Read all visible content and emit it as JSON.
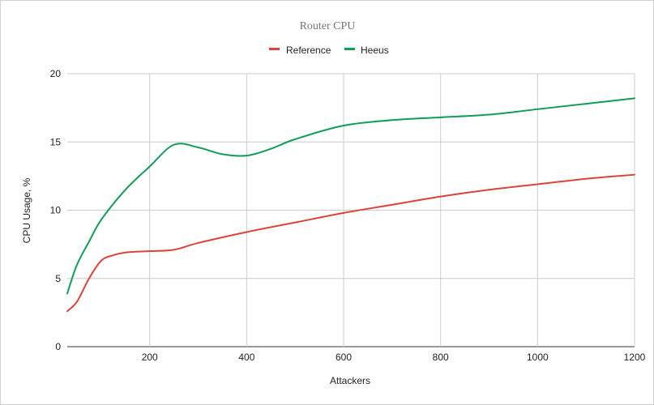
{
  "chart_data": {
    "type": "line",
    "title": "Router CPU",
    "xlabel": "Attackers",
    "ylabel": "CPU Usage, %",
    "xlim": [
      30,
      1200
    ],
    "ylim": [
      0,
      20
    ],
    "xticks": [
      200,
      400,
      600,
      800,
      1000,
      1200
    ],
    "yticks": [
      0,
      5,
      10,
      15,
      20
    ],
    "grid": true,
    "legend_position": "top",
    "series": [
      {
        "name": "Reference",
        "color": "#db4437",
        "x": [
          30,
          50,
          75,
          100,
          125,
          150,
          200,
          250,
          300,
          400,
          500,
          600,
          700,
          800,
          900,
          1000,
          1100,
          1200
        ],
        "y": [
          2.6,
          3.3,
          5.0,
          6.3,
          6.7,
          6.9,
          7.0,
          7.1,
          7.6,
          8.4,
          9.1,
          9.8,
          10.4,
          11.0,
          11.5,
          11.9,
          12.3,
          12.6
        ]
      },
      {
        "name": "Heeus",
        "color": "#0f9d58",
        "x": [
          30,
          50,
          75,
          100,
          150,
          200,
          250,
          300,
          350,
          400,
          450,
          500,
          600,
          700,
          800,
          900,
          1000,
          1100,
          1200
        ],
        "y": [
          3.9,
          6.0,
          7.7,
          9.3,
          11.5,
          13.2,
          14.8,
          14.6,
          14.1,
          14.0,
          14.5,
          15.2,
          16.2,
          16.6,
          16.8,
          17.0,
          17.4,
          17.8,
          18.2
        ]
      }
    ]
  }
}
